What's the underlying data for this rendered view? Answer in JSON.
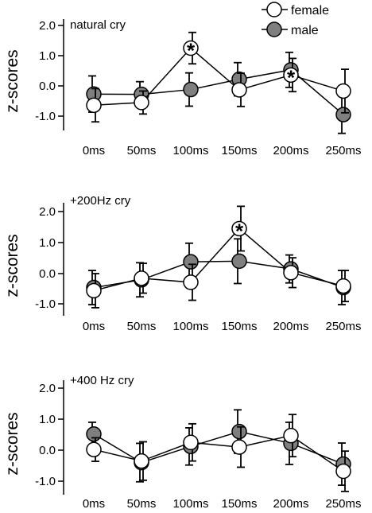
{
  "legend": {
    "female_label": "female",
    "male_label": "male"
  },
  "colors": {
    "female_fill": "#ffffff",
    "male_fill": "#7f7f7f",
    "stroke": "#000000"
  },
  "chart_data": [
    {
      "type": "line",
      "title": "natural cry",
      "ylabel": "z-scores",
      "xlabel": "",
      "categories": [
        "0ms",
        "50ms",
        "100ms",
        "150ms",
        "200ms",
        "250ms"
      ],
      "yticks": [
        "2.0",
        "1.0",
        "0.0",
        "-1.0"
      ],
      "ylim": [
        -1.4,
        2.3
      ],
      "series": [
        {
          "name": "female",
          "values": [
            -0.64,
            -0.55,
            1.25,
            -0.13,
            0.36,
            -0.17
          ],
          "errors": [
            0.55,
            0.38,
            0.52,
            0.55,
            0.55,
            0.72
          ]
        },
        {
          "name": "male",
          "values": [
            -0.27,
            -0.28,
            -0.12,
            0.22,
            0.53,
            -0.95
          ],
          "errors": [
            0.6,
            0.42,
            0.55,
            0.55,
            0.58,
            0.62
          ]
        }
      ],
      "significant": [
        {
          "category": "100ms",
          "series": "female",
          "mark": "*"
        },
        {
          "category": "200ms",
          "series": "female",
          "mark": "*"
        }
      ]
    },
    {
      "type": "line",
      "title": "+200Hz cry",
      "ylabel": "z-scores",
      "xlabel": "",
      "categories": [
        "0ms",
        "50ms",
        "100ms",
        "150ms",
        "200ms",
        "250ms"
      ],
      "yticks": [
        "2.0",
        "1.0",
        "0.0",
        "-1.0"
      ],
      "ylim": [
        -1.4,
        2.3
      ],
      "series": [
        {
          "name": "female",
          "values": [
            -0.55,
            -0.15,
            -0.28,
            1.45,
            0.03,
            -0.4
          ],
          "errors": [
            0.55,
            0.48,
            0.58,
            0.72,
            0.48,
            0.5
          ]
        },
        {
          "name": "male",
          "values": [
            -0.45,
            -0.2,
            0.38,
            0.4,
            0.15,
            -0.45
          ],
          "errors": [
            0.55,
            0.55,
            0.6,
            0.72,
            0.45,
            0.55
          ]
        }
      ],
      "significant": [
        {
          "category": "150ms",
          "series": "female",
          "mark": "*"
        }
      ]
    },
    {
      "type": "line",
      "title": "+400 Hz cry",
      "ylabel": "z-scores",
      "xlabel": "",
      "categories": [
        "0ms",
        "50ms",
        "100ms",
        "150ms",
        "200ms",
        "250ms"
      ],
      "yticks": [
        "2.0",
        "1.0",
        "0.0",
        "-1.0"
      ],
      "ylim": [
        -1.4,
        2.3
      ],
      "series": [
        {
          "name": "female",
          "values": [
            0.02,
            -0.35,
            0.25,
            0.1,
            0.47,
            -0.68
          ],
          "errors": [
            0.38,
            0.62,
            0.6,
            0.65,
            0.68,
            0.65
          ]
        },
        {
          "name": "male",
          "values": [
            0.52,
            -0.4,
            0.12,
            0.6,
            0.22,
            -0.45
          ],
          "errors": [
            0.38,
            0.62,
            0.6,
            0.7,
            0.68,
            0.68
          ]
        }
      ],
      "significant": []
    }
  ]
}
